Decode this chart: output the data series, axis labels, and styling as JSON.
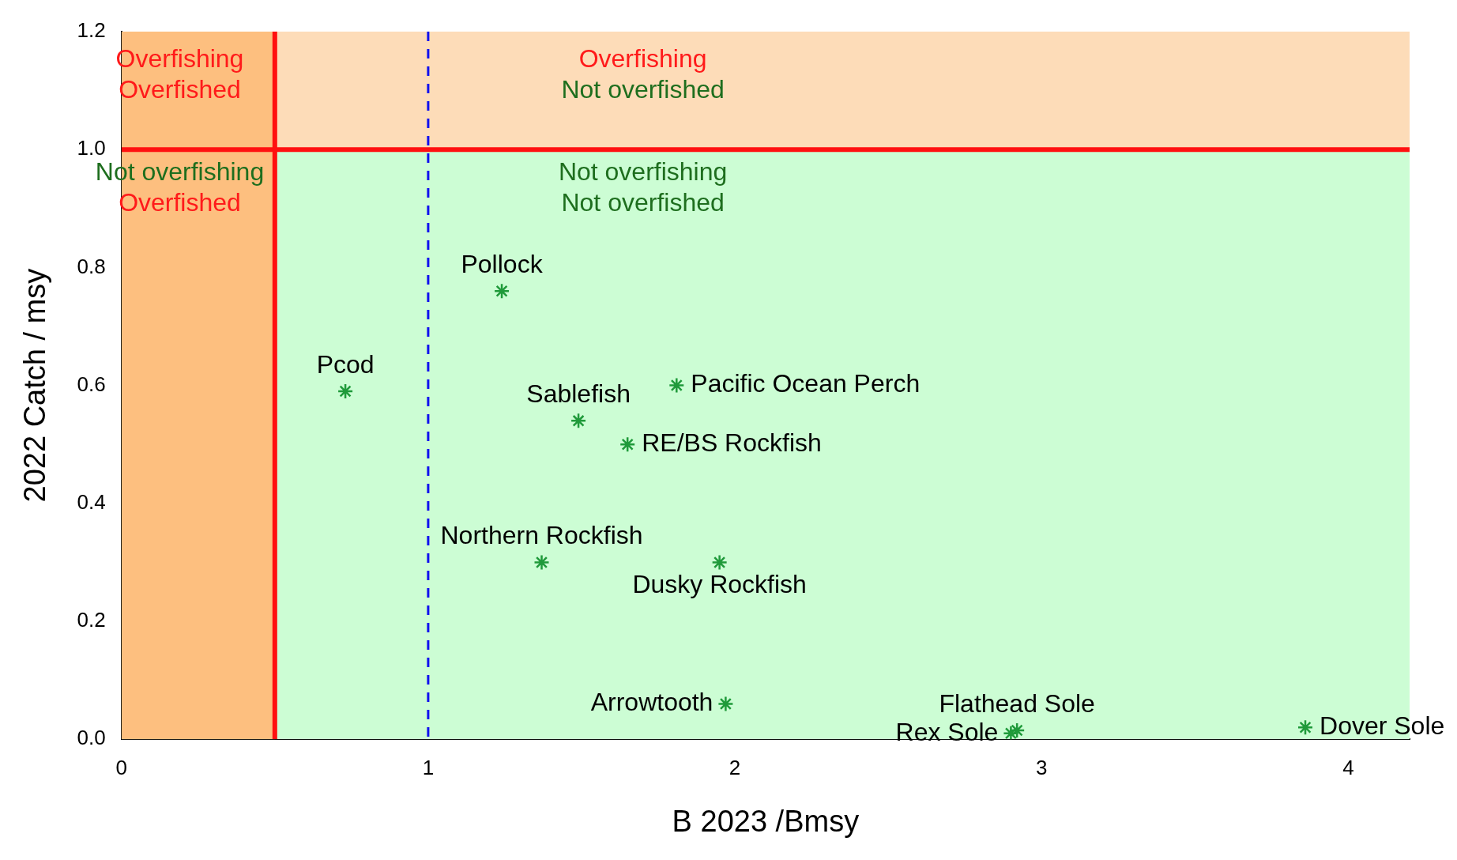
{
  "chart_data": {
    "type": "scatter",
    "xlabel": "B 2023 /Bmsy",
    "ylabel": "2022 Catch / msy",
    "xlim": [
      0,
      4.2
    ],
    "xticks": [
      0,
      1,
      2,
      3,
      4
    ],
    "ylim": [
      0,
      1.2
    ],
    "yticks": [
      {
        "value": 0,
        "label": "0.0"
      },
      {
        "value": 0.2,
        "label": "0.2"
      },
      {
        "value": 0.4,
        "label": "0.4"
      },
      {
        "value": 0.6,
        "label": "0.6"
      },
      {
        "value": 0.8,
        "label": "0.8"
      },
      {
        "value": 1,
        "label": "1.0"
      },
      {
        "value": 1.2,
        "label": "1.2"
      }
    ],
    "grid": false,
    "legend": false,
    "marker": "cross",
    "bands": [
      {
        "axis": "y",
        "from": 0,
        "to": 1,
        "color": "#ccfdd4"
      },
      {
        "axis": "y",
        "from": 1,
        "to": 1.2,
        "color": "#fddcb8"
      },
      {
        "axis": "x",
        "from": 0,
        "to": 0.5,
        "color": "#fdbf7f"
      }
    ],
    "ref_lines": [
      {
        "axis": "y",
        "value": 1,
        "color": "#ff1010",
        "line_style": "solid"
      },
      {
        "axis": "x",
        "value": 0.5,
        "color": "#ff1010",
        "line_style": "solid"
      },
      {
        "axis": "x",
        "value": 1,
        "color": "#1010ee",
        "line_style": "dashed"
      }
    ],
    "annotations": [
      "Overfishing\nOverfished",
      "Overfishing\nNot overfished",
      "Not overfishing\nOverfished",
      "Not overfishing\nNot overfished"
    ],
    "series": [
      {
        "name": "Pollock",
        "color": "#1f9a3a",
        "x": [
          1.24
        ],
        "values": [
          0.76
        ]
      },
      {
        "name": "Pcod",
        "color": "#1f9a3a",
        "x": [
          0.73
        ],
        "values": [
          0.59
        ]
      },
      {
        "name": "Sablefish",
        "color": "#1f9a3a",
        "x": [
          1.49
        ],
        "values": [
          0.54
        ]
      },
      {
        "name": "Pacific Ocean Perch",
        "color": "#1f9a3a",
        "x": [
          1.81
        ],
        "values": [
          0.6
        ]
      },
      {
        "name": "RE/BS Rockfish",
        "color": "#1f9a3a",
        "x": [
          1.65
        ],
        "values": [
          0.5
        ]
      },
      {
        "name": "Northern Rockfish",
        "color": "#1f9a3a",
        "x": [
          1.37
        ],
        "values": [
          0.3
        ]
      },
      {
        "name": "Dusky Rockfish",
        "color": "#1f9a3a",
        "x": [
          1.95
        ],
        "values": [
          0.3
        ]
      },
      {
        "name": "Arrowtooth",
        "color": "#1f9a3a",
        "x": [
          1.97
        ],
        "values": [
          0.06
        ]
      },
      {
        "name": "Flathead Sole",
        "color": "#1f9a3a",
        "x": [
          2.92
        ],
        "values": [
          0.015
        ]
      },
      {
        "name": "Rex Sole",
        "color": "#1f9a3a",
        "x": [
          2.9
        ],
        "values": [
          0.01
        ]
      },
      {
        "name": "Dover Sole",
        "color": "#1f9a3a",
        "x": [
          3.86
        ],
        "values": [
          0.02
        ]
      }
    ]
  }
}
